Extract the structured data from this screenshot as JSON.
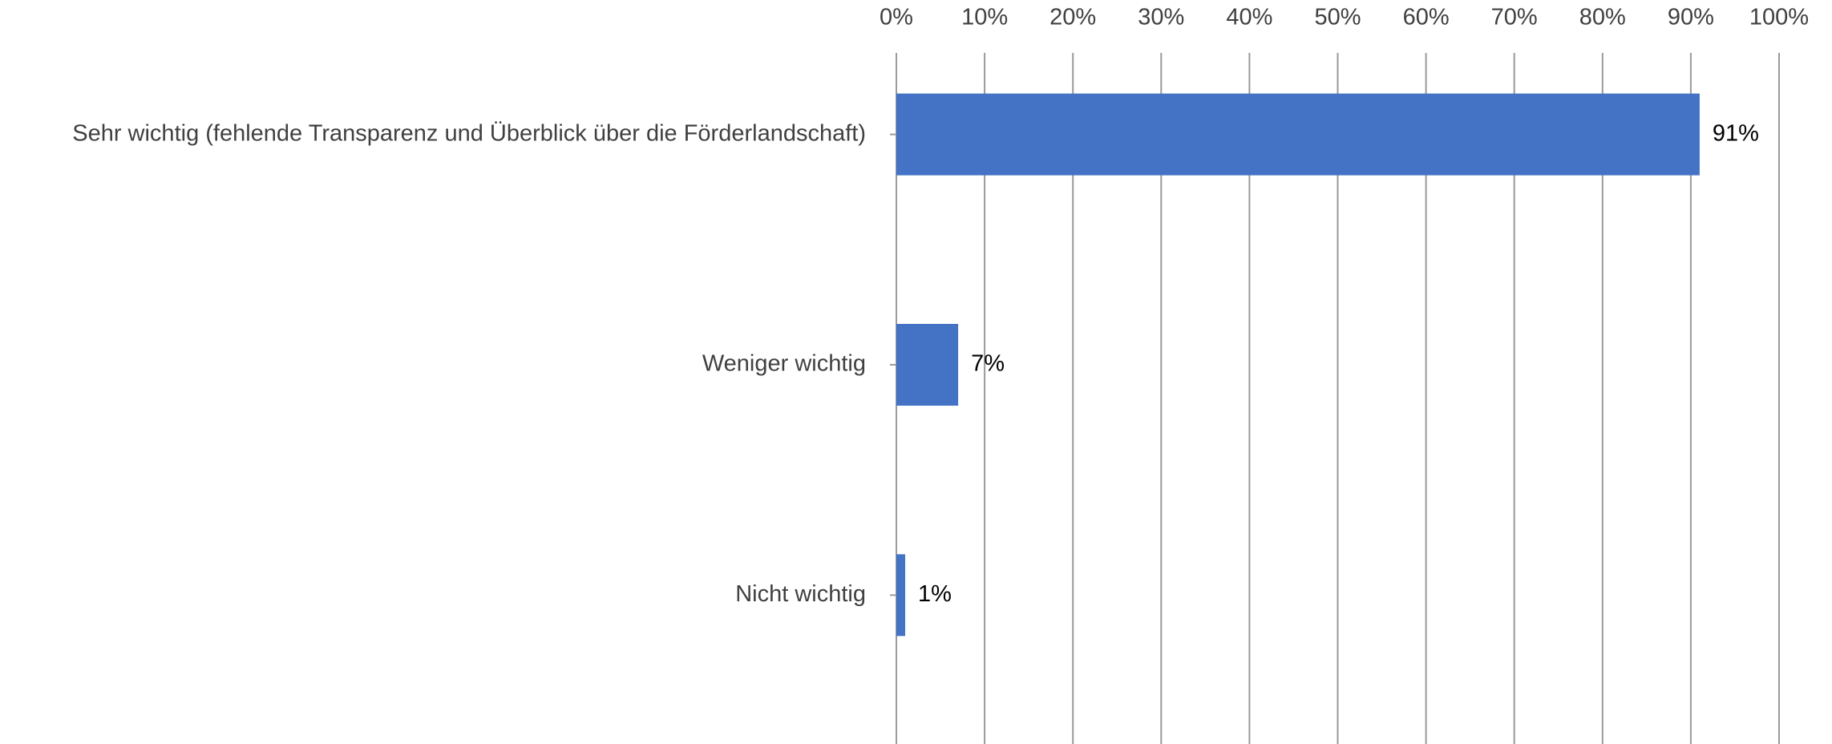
{
  "chart_data": {
    "type": "hbar",
    "categories": [
      "Sehr wichtig (fehlende Transparenz und Überblick über die Förderlandschaft)",
      "Weniger wichtig",
      "Nicht wichtig"
    ],
    "values": [
      91,
      7,
      1
    ],
    "value_labels": [
      "91%",
      "7%",
      "1%"
    ],
    "color": "#4472c4",
    "xlim": [
      0,
      100
    ],
    "xticks": [
      {
        "value": 0,
        "label": "0%"
      },
      {
        "value": 10,
        "label": "10%"
      },
      {
        "value": 20,
        "label": "20%"
      },
      {
        "value": 30,
        "label": "30%"
      },
      {
        "value": 40,
        "label": "40%"
      },
      {
        "value": 50,
        "label": "50%"
      },
      {
        "value": 60,
        "label": "60%"
      },
      {
        "value": 70,
        "label": "70%"
      },
      {
        "value": 80,
        "label": "80%"
      },
      {
        "value": 90,
        "label": "90%"
      },
      {
        "value": 100,
        "label": "100%"
      }
    ],
    "grid": true
  }
}
